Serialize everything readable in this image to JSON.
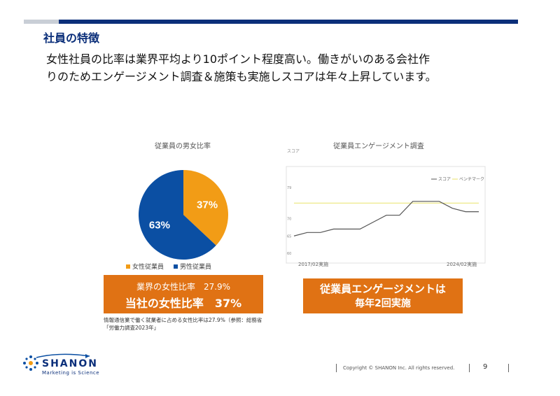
{
  "title": "社員の特徴",
  "lead": {
    "line1": "女性社員の比率は業界平均より10ポイント程度高い。働きがいのある会社作",
    "line2": "りのためエンゲージメント調査＆施策も実施しスコアは年々上昇しています。"
  },
  "colors": {
    "navy": "#0b2f7a",
    "orange": "#e07214",
    "pie_orange": "#f29c16",
    "pie_blue": "#0b4fa3"
  },
  "chart_data": [
    {
      "type": "pie",
      "title": "従業員の男女比率",
      "slices": [
        {
          "label": "女性従業員",
          "value": 37,
          "display": "37%"
        },
        {
          "label": "男性従業員",
          "value": 63,
          "display": "63%"
        }
      ]
    },
    {
      "type": "line",
      "title": "従業員エンゲージメント調査",
      "ylabel": "スコア",
      "ylim": [
        60,
        79
      ],
      "yticks": [
        "79",
        "70",
        "65",
        "60"
      ],
      "x_start_label": "2017/02実施",
      "x_end_label": "2024/02実施",
      "legend": [
        "スコア",
        "ベンチマーク"
      ],
      "benchmark": 74.5,
      "series": [
        {
          "name": "スコア",
          "values": [
            65,
            66,
            66,
            67,
            67,
            67,
            69,
            71,
            71,
            75,
            75,
            75,
            73,
            72,
            72
          ]
        }
      ]
    }
  ],
  "boxes": {
    "left_line1": "業界の女性比率　27.9%",
    "left_line2": "当社の女性比率　37%",
    "right_line1": "従業員エンゲージメントは",
    "right_line2": "毎年2回実施"
  },
  "footnote": "情報通信業で働く就業者に占める女性比率は27.9%（参照：総務省「労働力調査2023年」",
  "logo": {
    "name": "SHANON",
    "tagline": "Marketing is Science"
  },
  "footer": {
    "copyright": "Copyright © SHANON Inc. All rights reserved.",
    "page": "9"
  }
}
